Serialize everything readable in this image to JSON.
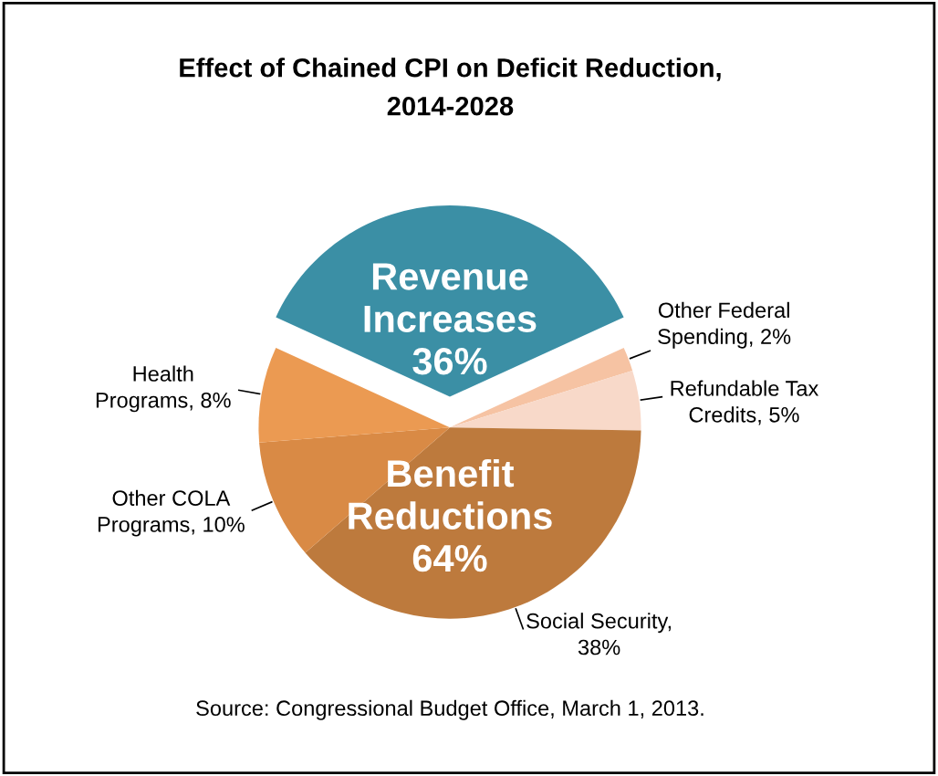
{
  "chart_data": {
    "type": "pie",
    "title": "Effect of Chained CPI on Deficit Reduction,\n2014-2028",
    "categories": [
      "Revenue\nIncreases\n36%",
      "Other Federal\nSpending, 2%",
      "Refundable Tax\nCredits, 5%",
      "Social Security,\n38%",
      "Other COLA\nPrograms, 10%",
      "Health\nPrograms, 8%"
    ],
    "values": [
      36,
      2,
      5,
      38,
      10,
      8
    ],
    "colors": [
      "#3b8fa5",
      "#f6c3a3",
      "#f8d9c9",
      "#bd7a3d",
      "#d98a45",
      "#eb9a52"
    ],
    "annotations": [
      "Benefit\nReductions\n64%",
      "Source: Congressional Budget Office, March 1, 2013."
    ]
  }
}
